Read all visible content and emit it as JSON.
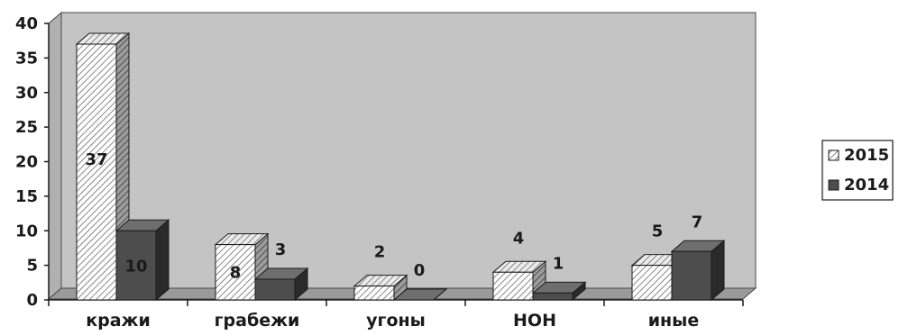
{
  "chart_data": {
    "type": "bar",
    "categories": [
      "кражи",
      "грабежи",
      "угоны",
      "НОН",
      "иные"
    ],
    "series": [
      {
        "name": "2015",
        "values": [
          37,
          8,
          2,
          4,
          5
        ],
        "pattern": "hatched"
      },
      {
        "name": "2014",
        "values": [
          10,
          3,
          0,
          1,
          7
        ],
        "color": "#4d4d4d"
      }
    ],
    "ylim": [
      0,
      40
    ],
    "yticks": [
      "0",
      "5",
      "10",
      "15",
      "20",
      "25",
      "30",
      "35",
      "40"
    ],
    "grid": false,
    "legend_position": "right",
    "three_d": true,
    "colors": {
      "back_wall": "#c4c4c4",
      "floor": "#9a9a9a",
      "series_2014": "#4d4d4d"
    }
  }
}
